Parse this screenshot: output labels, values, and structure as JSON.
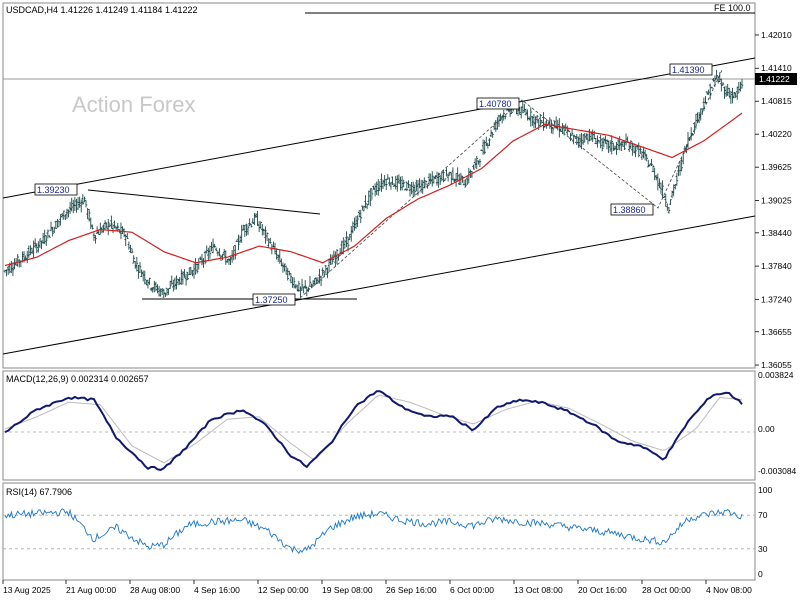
{
  "chart_data": [
    {
      "type": "candlestick",
      "header": "USDCAD,H4  1.41226 1.41249 1.41184 1.41222",
      "watermark": "Action Forex",
      "fibo_label": "FE 100.0",
      "current_price_label": "1.41222",
      "ylim": [
        1.3578,
        1.4252
      ],
      "y_ticks": [
        "1.42010",
        "1.41410",
        "1.40815",
        "1.40220",
        "1.39625",
        "1.39025",
        "1.38440",
        "1.37840",
        "1.37240",
        "1.36655",
        "1.36055"
      ],
      "x_ticks": [
        "13 Aug 2025",
        "21 Aug 00:00",
        "28 Aug 08:00",
        "4 Sep 16:00",
        "12 Sep 00:00",
        "19 Sep 08:00",
        "26 Sep 16:00",
        "6 Oct 00:00",
        "13 Oct 08:00",
        "20 Oct 16:00",
        "28 Oct 00:00",
        "4 Nov 08:00"
      ],
      "annotations": [
        "1.39230",
        "1.37250",
        "1.40780",
        "1.38860",
        "1.41390"
      ],
      "price_path": [
        [
          0,
          1.3775
        ],
        [
          12,
          1.38
        ],
        [
          24,
          1.383
        ],
        [
          38,
          1.388
        ],
        [
          50,
          1.3905
        ],
        [
          56,
          1.384
        ],
        [
          66,
          1.386
        ],
        [
          76,
          1.384
        ],
        [
          82,
          1.379
        ],
        [
          92,
          1.375
        ],
        [
          100,
          1.3735
        ],
        [
          110,
          1.376
        ],
        [
          120,
          1.378
        ],
        [
          132,
          1.382
        ],
        [
          142,
          1.379
        ],
        [
          150,
          1.385
        ],
        [
          158,
          1.387
        ],
        [
          164,
          1.384
        ],
        [
          170,
          1.381
        ],
        [
          178,
          1.377
        ],
        [
          186,
          1.374
        ],
        [
          194,
          1.375
        ],
        [
          200,
          1.377
        ],
        [
          208,
          1.38
        ],
        [
          216,
          1.383
        ],
        [
          224,
          1.388
        ],
        [
          232,
          1.392
        ],
        [
          240,
          1.394
        ],
        [
          250,
          1.393
        ],
        [
          260,
          1.3925
        ],
        [
          270,
          1.394
        ],
        [
          280,
          1.395
        ],
        [
          290,
          1.3935
        ],
        [
          298,
          1.3975
        ],
        [
          304,
          1.401
        ],
        [
          312,
          1.4055
        ],
        [
          320,
          1.407
        ],
        [
          328,
          1.406
        ],
        [
          336,
          1.4045
        ],
        [
          344,
          1.404
        ],
        [
          352,
          1.403
        ],
        [
          360,
          1.401
        ],
        [
          368,
          1.402
        ],
        [
          376,
          1.4005
        ],
        [
          384,
          1.4
        ],
        [
          392,
          1.4005
        ],
        [
          400,
          1.399
        ],
        [
          408,
          1.396
        ],
        [
          414,
          1.392
        ],
        [
          418,
          1.389
        ],
        [
          424,
          1.395
        ],
        [
          430,
          1.401
        ],
        [
          436,
          1.405
        ],
        [
          442,
          1.409
        ],
        [
          448,
          1.4125
        ],
        [
          454,
          1.41
        ],
        [
          460,
          1.409
        ],
        [
          464,
          1.411
        ]
      ],
      "ma_path": [
        [
          0,
          1.3785
        ],
        [
          20,
          1.38
        ],
        [
          40,
          1.383
        ],
        [
          60,
          1.385
        ],
        [
          80,
          1.3845
        ],
        [
          100,
          1.381
        ],
        [
          120,
          1.379
        ],
        [
          140,
          1.38
        ],
        [
          160,
          1.382
        ],
        [
          180,
          1.381
        ],
        [
          200,
          1.379
        ],
        [
          220,
          1.382
        ],
        [
          240,
          1.387
        ],
        [
          260,
          1.3905
        ],
        [
          280,
          1.393
        ],
        [
          300,
          1.396
        ],
        [
          320,
          1.401
        ],
        [
          340,
          1.404
        ],
        [
          360,
          1.403
        ],
        [
          380,
          1.402
        ],
        [
          400,
          1.4
        ],
        [
          420,
          1.398
        ],
        [
          440,
          1.401
        ],
        [
          464,
          1.406
        ]
      ],
      "macd_label": "MACD(12,26,9) 0.002314 0.002657",
      "macd_ylim": [
        -0.0036,
        0.0044
      ],
      "macd_ticks": [
        "0.003824",
        "0.00",
        "-0.003084"
      ],
      "macd_path": [
        [
          0,
          -0.0001
        ],
        [
          20,
          0.0018
        ],
        [
          40,
          0.0028
        ],
        [
          56,
          0.0026
        ],
        [
          70,
          -0.0005
        ],
        [
          90,
          -0.003
        ],
        [
          100,
          -0.0031
        ],
        [
          115,
          -0.0012
        ],
        [
          130,
          0.001
        ],
        [
          150,
          0.0018
        ],
        [
          165,
          0.0004
        ],
        [
          180,
          -0.002
        ],
        [
          190,
          -0.0029
        ],
        [
          205,
          -0.001
        ],
        [
          220,
          0.002
        ],
        [
          235,
          0.0034
        ],
        [
          250,
          0.002
        ],
        [
          265,
          0.0012
        ],
        [
          280,
          0.0013
        ],
        [
          295,
          0.0001
        ],
        [
          310,
          0.002
        ],
        [
          325,
          0.0026
        ],
        [
          340,
          0.0023
        ],
        [
          355,
          0.0016
        ],
        [
          370,
          0.0006
        ],
        [
          385,
          -0.0008
        ],
        [
          400,
          -0.0012
        ],
        [
          415,
          -0.0023
        ],
        [
          430,
          0.0008
        ],
        [
          445,
          0.003
        ],
        [
          455,
          0.0032
        ],
        [
          464,
          0.0023
        ]
      ],
      "signal_path": [
        [
          0,
          0.0002
        ],
        [
          20,
          0.0012
        ],
        [
          40,
          0.0024
        ],
        [
          60,
          0.0022
        ],
        [
          80,
          -0.0012
        ],
        [
          100,
          -0.0026
        ],
        [
          120,
          -0.001
        ],
        [
          140,
          0.001
        ],
        [
          160,
          0.0012
        ],
        [
          180,
          -0.001
        ],
        [
          195,
          -0.0024
        ],
        [
          215,
          0.0006
        ],
        [
          235,
          0.003
        ],
        [
          255,
          0.0024
        ],
        [
          275,
          0.0014
        ],
        [
          295,
          0.0006
        ],
        [
          315,
          0.0018
        ],
        [
          335,
          0.0025
        ],
        [
          355,
          0.0019
        ],
        [
          375,
          0.0006
        ],
        [
          395,
          -0.0008
        ],
        [
          415,
          -0.0016
        ],
        [
          435,
          0.0002
        ],
        [
          450,
          0.0028
        ],
        [
          464,
          0.0026
        ]
      ],
      "rsi_label": "RSI(14) 67.7906",
      "rsi_ylim": [
        0,
        100
      ],
      "rsi_ticks": [
        "100",
        "70",
        "30",
        "0"
      ],
      "rsi_path": [
        [
          0,
          70
        ],
        [
          20,
          72
        ],
        [
          40,
          74
        ],
        [
          56,
          42
        ],
        [
          70,
          55
        ],
        [
          90,
          32
        ],
        [
          100,
          35
        ],
        [
          115,
          58
        ],
        [
          130,
          62
        ],
        [
          150,
          64
        ],
        [
          165,
          52
        ],
        [
          180,
          30
        ],
        [
          190,
          28
        ],
        [
          205,
          55
        ],
        [
          220,
          68
        ],
        [
          235,
          72
        ],
        [
          250,
          64
        ],
        [
          265,
          60
        ],
        [
          280,
          62
        ],
        [
          295,
          58
        ],
        [
          310,
          66
        ],
        [
          325,
          62
        ],
        [
          340,
          60
        ],
        [
          355,
          56
        ],
        [
          370,
          52
        ],
        [
          385,
          48
        ],
        [
          400,
          42
        ],
        [
          415,
          38
        ],
        [
          430,
          66
        ],
        [
          445,
          72
        ],
        [
          455,
          74
        ],
        [
          464,
          68
        ]
      ]
    }
  ]
}
